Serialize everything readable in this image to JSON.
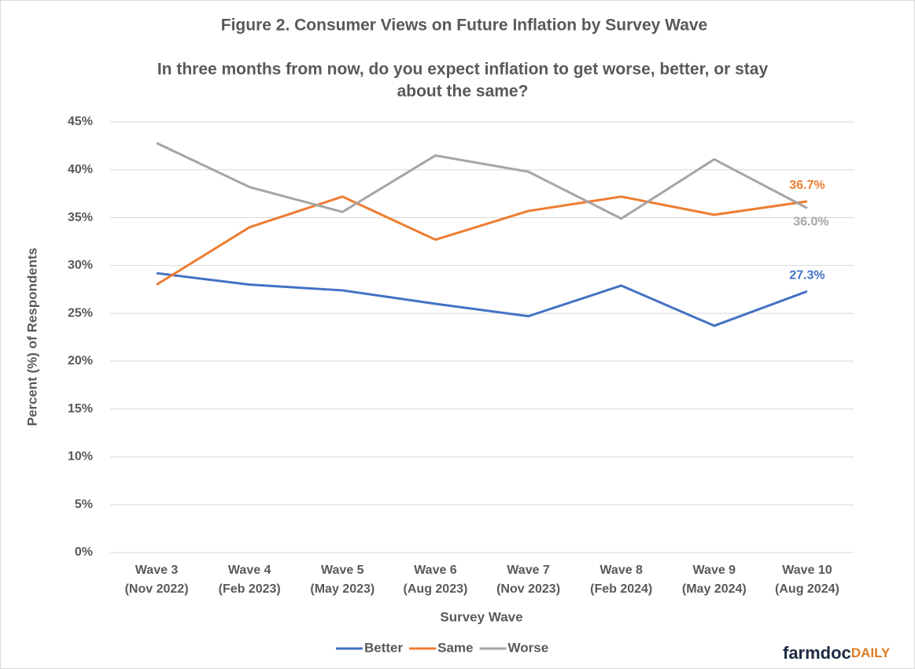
{
  "chart_data": {
    "type": "line",
    "title": "Figure 2. Consumer Views on Future Inflation by Survey Wave",
    "subtitle": [
      "In three months from now, do you expect inflation to get worse, better, or stay",
      "about the same?"
    ],
    "x_label": "Survey Wave",
    "y_label": "Percent (%)  of Respondents",
    "categories": [
      [
        "Wave 3",
        "(Nov 2022)"
      ],
      [
        "Wave 4",
        "(Feb 2023)"
      ],
      [
        "Wave 5",
        "(May 2023)"
      ],
      [
        "Wave 6",
        "(Aug 2023)"
      ],
      [
        "Wave 7",
        "(Nov 2023)"
      ],
      [
        "Wave 8",
        "(Feb 2024)"
      ],
      [
        "Wave 9",
        "(May 2024)"
      ],
      [
        "Wave 10",
        "(Aug 2024)"
      ]
    ],
    "series": [
      {
        "name": "Better",
        "color": "#4472c4",
        "values": [
          29.2,
          28.0,
          27.4,
          26.0,
          24.7,
          27.9,
          23.7,
          27.3
        ],
        "value_labels": [
          null,
          null,
          null,
          null,
          null,
          null,
          null,
          "27.3%"
        ]
      },
      {
        "name": "Same",
        "color": "#ed7d31",
        "values": [
          28.0,
          34.0,
          37.2,
          32.7,
          35.7,
          37.2,
          35.3,
          36.7
        ],
        "value_labels": [
          null,
          null,
          null,
          null,
          null,
          null,
          null,
          "36.7%"
        ]
      },
      {
        "name": "Worse",
        "color": "#a5a5a5",
        "values": [
          42.8,
          38.2,
          35.6,
          41.5,
          39.8,
          34.9,
          41.1,
          36.0
        ],
        "value_labels": [
          null,
          null,
          null,
          null,
          null,
          null,
          null,
          "36.0%"
        ]
      }
    ],
    "ylim": [
      0,
      45
    ],
    "yticks": [
      {
        "value": 0,
        "label": "0%"
      },
      {
        "value": 5,
        "label": "5%"
      },
      {
        "value": 10,
        "label": "10%"
      },
      {
        "value": 15,
        "label": "15%"
      },
      {
        "value": 20,
        "label": "20%"
      },
      {
        "value": 25,
        "label": "25%"
      },
      {
        "value": 30,
        "label": "30%"
      },
      {
        "value": 35,
        "label": "35%"
      },
      {
        "value": 40,
        "label": "40%"
      },
      {
        "value": 45,
        "label": "45%"
      }
    ],
    "grid": true,
    "legend": "bottom"
  },
  "logo": {
    "main": "farmdoc",
    "accent": "DAILY"
  }
}
